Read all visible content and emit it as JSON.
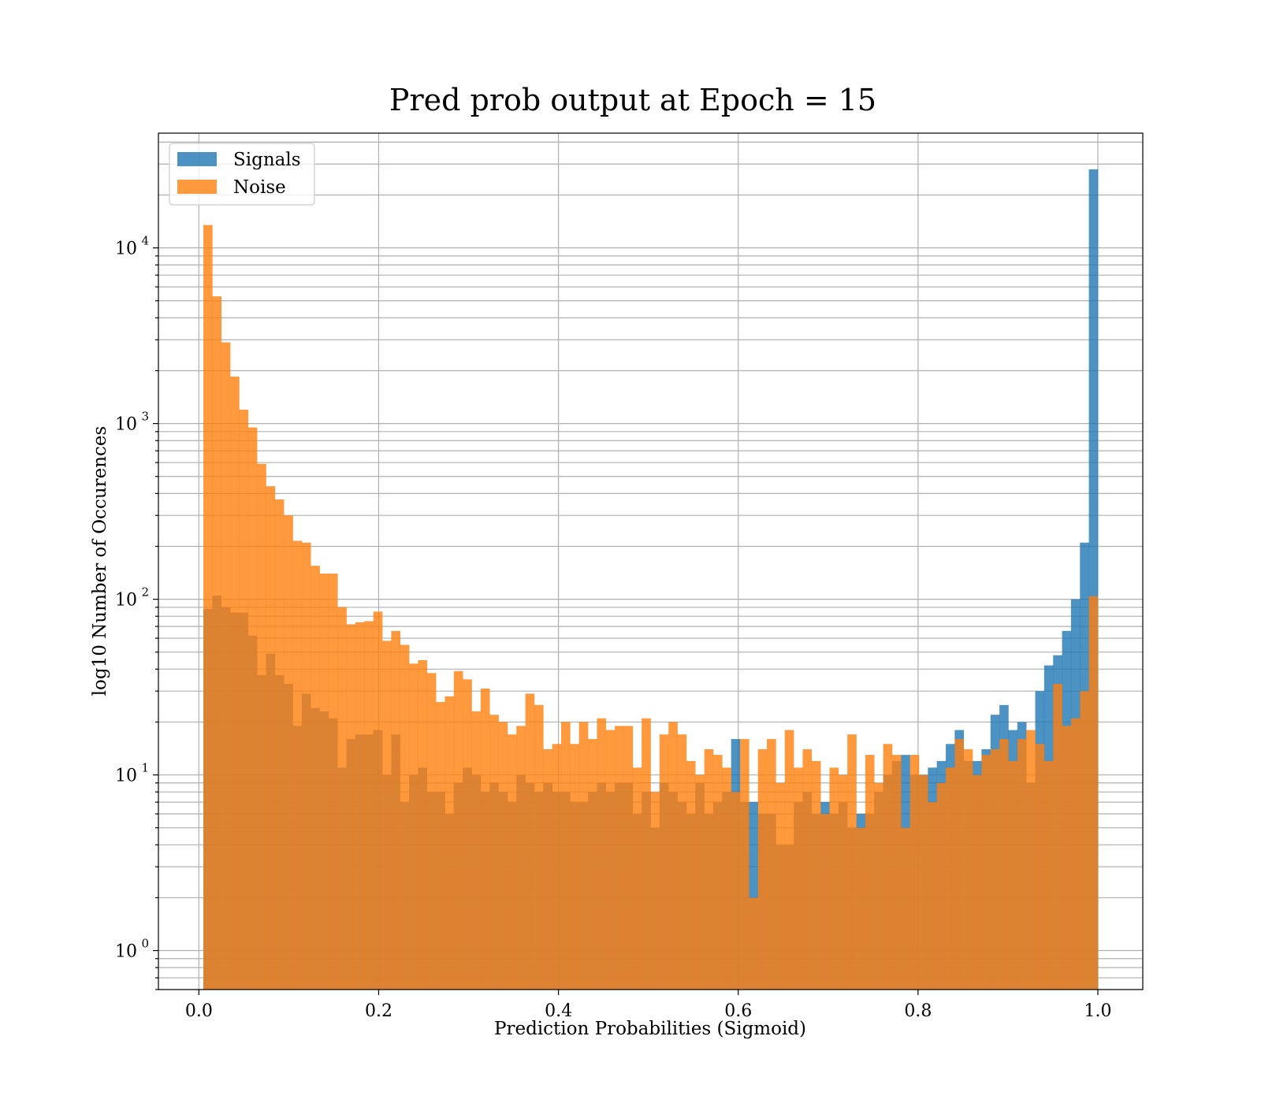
{
  "chart_data": {
    "type": "bar",
    "title": "Pred prob output at Epoch = 15",
    "xlabel": "Prediction Probabilities (Sigmoid)",
    "ylabel": "log10 Number of Occurences",
    "xlim": [
      -0.045,
      1.05
    ],
    "ylim": [
      0.6,
      45000
    ],
    "yscale": "log",
    "grid": true,
    "legend": "top-left",
    "x_ticks": [
      "0.0",
      "0.2",
      "0.4",
      "0.6",
      "0.8",
      "1.0"
    ],
    "x_tick_values": [
      0.0,
      0.2,
      0.4,
      0.6,
      0.8,
      1.0
    ],
    "y_ticks": [
      {
        "base": "10",
        "exp": "0",
        "value": 1
      },
      {
        "base": "10",
        "exp": "1",
        "value": 10
      },
      {
        "base": "10",
        "exp": "2",
        "value": 100
      },
      {
        "base": "10",
        "exp": "3",
        "value": 1000
      },
      {
        "base": "10",
        "exp": "4",
        "value": 10000
      }
    ],
    "bin_range": [
      0.005,
      1.0
    ],
    "series": [
      {
        "name": "Signals",
        "color": "#1f77b4",
        "values": [
          88,
          105,
          90,
          84,
          84,
          62,
          37,
          49,
          37,
          33,
          19,
          29,
          24,
          23,
          21,
          11,
          16,
          17,
          17,
          18,
          10,
          17,
          7,
          10,
          11,
          8,
          8,
          6,
          9,
          11,
          10,
          8,
          9,
          8,
          7,
          10,
          9,
          8,
          9,
          8,
          8,
          7,
          7,
          8,
          9,
          8,
          9,
          9,
          6,
          8,
          5,
          9,
          8,
          7,
          6,
          9,
          6,
          7,
          8,
          16,
          7,
          7,
          6,
          6,
          4,
          4,
          7,
          8,
          6,
          7,
          6,
          7,
          5,
          6,
          6,
          8,
          10,
          12,
          13,
          10,
          10,
          11,
          12,
          15,
          18,
          12,
          12,
          14,
          22,
          25,
          18,
          20,
          9,
          30,
          42,
          48,
          66,
          100,
          210,
          28000
        ]
      },
      {
        "name": "Noise",
        "color": "#ff7f0e",
        "values": [
          13500,
          5300,
          2900,
          1850,
          1200,
          950,
          590,
          440,
          370,
          300,
          215,
          210,
          155,
          140,
          140,
          90,
          72,
          74,
          75,
          85,
          58,
          66,
          55,
          43,
          45,
          38,
          26,
          28,
          39,
          35,
          23,
          31,
          22,
          20,
          17,
          19,
          29,
          25,
          14,
          15,
          20,
          15,
          20,
          16,
          21,
          18,
          19,
          19,
          11,
          21,
          8,
          17,
          20,
          17,
          12,
          10,
          14,
          13,
          11,
          8,
          16,
          2,
          14,
          16,
          9,
          18,
          11,
          14,
          12,
          6,
          11,
          10,
          17,
          5,
          13,
          9,
          15,
          13,
          5,
          13,
          10,
          7,
          9,
          11,
          16,
          14,
          10,
          13,
          14,
          16,
          12,
          16,
          18,
          15,
          12,
          33,
          19,
          21,
          30,
          104
        ]
      }
    ]
  }
}
